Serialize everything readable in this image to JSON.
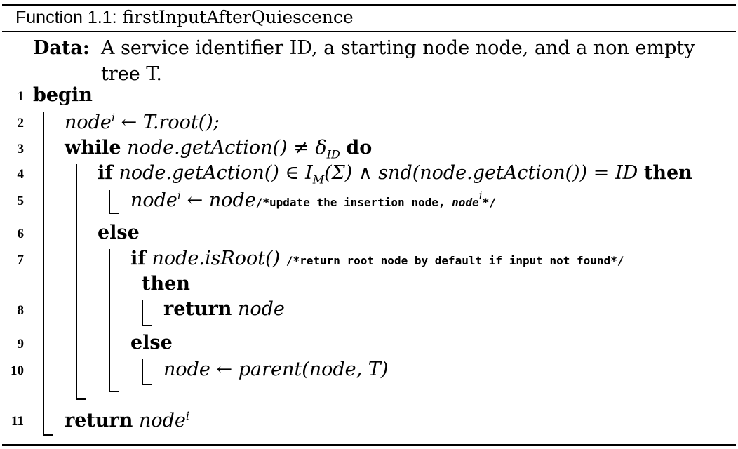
{
  "caption": {
    "label": "Function 1.1:",
    "name": "firstInputAfterQuiescence"
  },
  "data_block": {
    "keyword": "Data:",
    "text": "A service identifier ID, a starting node node, and a non empty tree T."
  },
  "lines": [
    {
      "num": "1",
      "kw": "begin"
    },
    {
      "num": "2",
      "lhs": "node",
      "sup": "i",
      "op": " ← ",
      "rhs": "T.root();"
    },
    {
      "num": "3",
      "kw": "while",
      "expr": "node.getAction() ≠ δ",
      "sub": "ID",
      "kw2": "do"
    },
    {
      "num": "4",
      "kw": "if",
      "expr1": "node.getAction() ∈ I",
      "sub": "M",
      "expr2": "(Σ) ∧ snd(node.getAction()) = ID",
      "kw2": "then"
    },
    {
      "num": "5",
      "lhs": "node",
      "sup": "i",
      "op": " ← ",
      "rhs": "node",
      "comment_a": "/*update the insertion node, ",
      "comment_var": "node",
      "comment_sup": "i",
      "comment_b": "*/"
    },
    {
      "num": "6",
      "kw": "else"
    },
    {
      "num": "7",
      "kw": "if",
      "expr": "node.isRoot()",
      "comment": "/*return root node by default if input not found*/",
      "kw2": "then"
    },
    {
      "num": "8",
      "kw": "return",
      "expr": "node"
    },
    {
      "num": "9",
      "kw": "else"
    },
    {
      "num": "10",
      "expr": "node ← parent(node, T)"
    },
    {
      "num": "11",
      "kw": "return",
      "expr": "node",
      "sup": "i"
    }
  ]
}
